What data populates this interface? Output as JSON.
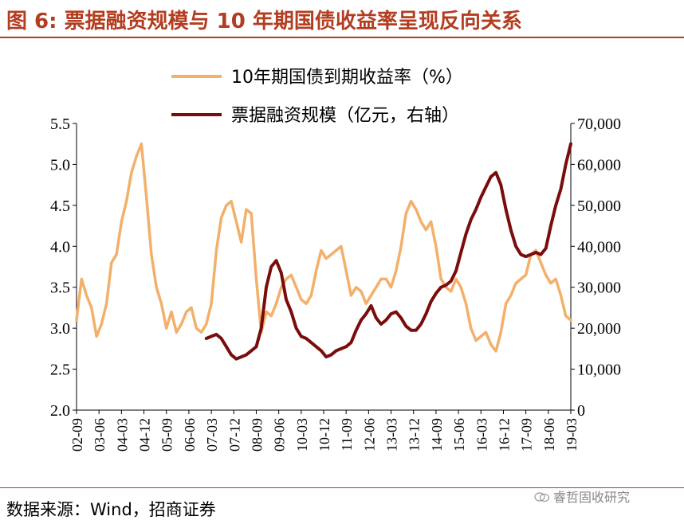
{
  "title": "图 6: 票据融资规模与 10 年期国债收益率呈现反向关系",
  "source": "数据来源：Wind，招商证券",
  "watermark": "睿哲固收研究",
  "colors": {
    "title": "#b33d20",
    "bond_yield": "#f2b06b",
    "bill_financing": "#7a0c0c",
    "axis": "#000000"
  },
  "chart_data": {
    "type": "line",
    "x_tick_labels": [
      "02-09",
      "03-06",
      "04-03",
      "04-12",
      "05-09",
      "06-06",
      "07-03",
      "07-12",
      "08-09",
      "09-06",
      "10-03",
      "10-12",
      "11-09",
      "12-06",
      "13-03",
      "13-12",
      "14-09",
      "15-06",
      "16-03",
      "16-12",
      "17-09",
      "18-06",
      "19-03"
    ],
    "x_range": [
      "2002-09",
      "2019-03"
    ],
    "left_axis": {
      "label": "10年期国债到期收益率（%）",
      "ticks": [
        "2.0",
        "2.5",
        "3.0",
        "3.5",
        "4.0",
        "4.5",
        "5.0",
        "5.5"
      ],
      "ylim": [
        2.0,
        5.5
      ]
    },
    "right_axis": {
      "label": "票据融资规模（亿元，右轴）",
      "ticks": [
        "0",
        "10,000",
        "20,000",
        "30,000",
        "40,000",
        "50,000",
        "60,000",
        "70,000"
      ],
      "ylim": [
        0,
        70000
      ]
    },
    "legend": {
      "position": "top-center"
    },
    "series": [
      {
        "name": "10年期国债到期收益率（%）",
        "axis": "left",
        "color": "#f2b06b",
        "points": [
          [
            "2002-09",
            3.1
          ],
          [
            "2002-11",
            3.6
          ],
          [
            "2003-01",
            3.4
          ],
          [
            "2003-03",
            3.25
          ],
          [
            "2003-05",
            2.9
          ],
          [
            "2003-07",
            3.05
          ],
          [
            "2003-09",
            3.3
          ],
          [
            "2003-11",
            3.8
          ],
          [
            "2004-01",
            3.9
          ],
          [
            "2004-03",
            4.3
          ],
          [
            "2004-05",
            4.55
          ],
          [
            "2004-07",
            4.9
          ],
          [
            "2004-09",
            5.1
          ],
          [
            "2004-11",
            5.25
          ],
          [
            "2005-01",
            4.6
          ],
          [
            "2005-03",
            3.9
          ],
          [
            "2005-05",
            3.5
          ],
          [
            "2005-07",
            3.3
          ],
          [
            "2005-09",
            3.0
          ],
          [
            "2005-11",
            3.2
          ],
          [
            "2006-01",
            2.95
          ],
          [
            "2006-03",
            3.05
          ],
          [
            "2006-05",
            3.2
          ],
          [
            "2006-07",
            3.25
          ],
          [
            "2006-09",
            3.0
          ],
          [
            "2006-11",
            2.95
          ],
          [
            "2007-01",
            3.05
          ],
          [
            "2007-03",
            3.3
          ],
          [
            "2007-05",
            3.95
          ],
          [
            "2007-07",
            4.35
          ],
          [
            "2007-09",
            4.5
          ],
          [
            "2007-11",
            4.55
          ],
          [
            "2008-01",
            4.3
          ],
          [
            "2008-03",
            4.05
          ],
          [
            "2008-05",
            4.45
          ],
          [
            "2008-07",
            4.4
          ],
          [
            "2008-09",
            3.6
          ],
          [
            "2008-11",
            2.95
          ],
          [
            "2009-01",
            3.2
          ],
          [
            "2009-03",
            3.15
          ],
          [
            "2009-05",
            3.3
          ],
          [
            "2009-07",
            3.5
          ],
          [
            "2009-09",
            3.6
          ],
          [
            "2009-11",
            3.65
          ],
          [
            "2010-01",
            3.5
          ],
          [
            "2010-03",
            3.35
          ],
          [
            "2010-05",
            3.3
          ],
          [
            "2010-07",
            3.4
          ],
          [
            "2010-09",
            3.7
          ],
          [
            "2010-11",
            3.95
          ],
          [
            "2011-01",
            3.85
          ],
          [
            "2011-03",
            3.9
          ],
          [
            "2011-05",
            3.95
          ],
          [
            "2011-07",
            4.0
          ],
          [
            "2011-09",
            3.7
          ],
          [
            "2011-11",
            3.4
          ],
          [
            "2012-01",
            3.5
          ],
          [
            "2012-03",
            3.45
          ],
          [
            "2012-05",
            3.3
          ],
          [
            "2012-07",
            3.4
          ],
          [
            "2012-09",
            3.5
          ],
          [
            "2012-11",
            3.6
          ],
          [
            "2013-01",
            3.6
          ],
          [
            "2013-03",
            3.5
          ],
          [
            "2013-05",
            3.7
          ],
          [
            "2013-07",
            4.0
          ],
          [
            "2013-09",
            4.4
          ],
          [
            "2013-11",
            4.55
          ],
          [
            "2014-01",
            4.45
          ],
          [
            "2014-03",
            4.3
          ],
          [
            "2014-05",
            4.2
          ],
          [
            "2014-07",
            4.3
          ],
          [
            "2014-09",
            4.0
          ],
          [
            "2014-11",
            3.6
          ],
          [
            "2015-01",
            3.5
          ],
          [
            "2015-03",
            3.45
          ],
          [
            "2015-05",
            3.6
          ],
          [
            "2015-07",
            3.5
          ],
          [
            "2015-09",
            3.3
          ],
          [
            "2015-11",
            3.0
          ],
          [
            "2016-01",
            2.85
          ],
          [
            "2016-03",
            2.9
          ],
          [
            "2016-05",
            2.95
          ],
          [
            "2016-07",
            2.8
          ],
          [
            "2016-09",
            2.72
          ],
          [
            "2016-11",
            2.95
          ],
          [
            "2017-01",
            3.3
          ],
          [
            "2017-03",
            3.4
          ],
          [
            "2017-05",
            3.55
          ],
          [
            "2017-07",
            3.6
          ],
          [
            "2017-09",
            3.65
          ],
          [
            "2017-11",
            3.9
          ],
          [
            "2018-01",
            3.95
          ],
          [
            "2018-03",
            3.8
          ],
          [
            "2018-05",
            3.65
          ],
          [
            "2018-07",
            3.55
          ],
          [
            "2018-09",
            3.6
          ],
          [
            "2018-11",
            3.4
          ],
          [
            "2019-01",
            3.15
          ],
          [
            "2019-03",
            3.1
          ]
        ]
      },
      {
        "name": "票据融资规模（亿元，右轴）",
        "axis": "right",
        "color": "#7a0c0c",
        "points": [
          [
            "2007-01",
            17500
          ],
          [
            "2007-03",
            18000
          ],
          [
            "2007-05",
            18500
          ],
          [
            "2007-07",
            17500
          ],
          [
            "2007-09",
            15500
          ],
          [
            "2007-11",
            13500
          ],
          [
            "2008-01",
            12500
          ],
          [
            "2008-03",
            13000
          ],
          [
            "2008-05",
            13500
          ],
          [
            "2008-07",
            14500
          ],
          [
            "2008-09",
            15500
          ],
          [
            "2008-11",
            20000
          ],
          [
            "2009-01",
            30000
          ],
          [
            "2009-03",
            35000
          ],
          [
            "2009-05",
            36500
          ],
          [
            "2009-07",
            33500
          ],
          [
            "2009-09",
            27000
          ],
          [
            "2009-11",
            24000
          ],
          [
            "2010-01",
            20000
          ],
          [
            "2010-03",
            18000
          ],
          [
            "2010-05",
            17500
          ],
          [
            "2010-07",
            16500
          ],
          [
            "2010-09",
            15500
          ],
          [
            "2010-11",
            14500
          ],
          [
            "2011-01",
            13000
          ],
          [
            "2011-03",
            13500
          ],
          [
            "2011-05",
            14500
          ],
          [
            "2011-07",
            15000
          ],
          [
            "2011-09",
            15500
          ],
          [
            "2011-11",
            16500
          ],
          [
            "2012-01",
            19500
          ],
          [
            "2012-03",
            22000
          ],
          [
            "2012-05",
            23500
          ],
          [
            "2012-07",
            25500
          ],
          [
            "2012-09",
            22500
          ],
          [
            "2012-11",
            21000
          ],
          [
            "2013-01",
            22000
          ],
          [
            "2013-03",
            23500
          ],
          [
            "2013-05",
            24000
          ],
          [
            "2013-07",
            22500
          ],
          [
            "2013-09",
            20500
          ],
          [
            "2013-11",
            19500
          ],
          [
            "2014-01",
            19500
          ],
          [
            "2014-03",
            21000
          ],
          [
            "2014-05",
            23500
          ],
          [
            "2014-07",
            26500
          ],
          [
            "2014-09",
            28500
          ],
          [
            "2014-11",
            30000
          ],
          [
            "2015-01",
            30500
          ],
          [
            "2015-03",
            31500
          ],
          [
            "2015-05",
            34000
          ],
          [
            "2015-07",
            38500
          ],
          [
            "2015-09",
            43000
          ],
          [
            "2015-11",
            46500
          ],
          [
            "2016-01",
            49000
          ],
          [
            "2016-03",
            52000
          ],
          [
            "2016-05",
            54500
          ],
          [
            "2016-07",
            57000
          ],
          [
            "2016-09",
            58000
          ],
          [
            "2016-11",
            55000
          ],
          [
            "2017-01",
            49000
          ],
          [
            "2017-03",
            44000
          ],
          [
            "2017-05",
            40000
          ],
          [
            "2017-07",
            38000
          ],
          [
            "2017-09",
            37500
          ],
          [
            "2017-11",
            38000
          ],
          [
            "2018-01",
            38500
          ],
          [
            "2018-03",
            38000
          ],
          [
            "2018-05",
            39500
          ],
          [
            "2018-07",
            45000
          ],
          [
            "2018-09",
            50000
          ],
          [
            "2018-11",
            54000
          ],
          [
            "2019-01",
            60000
          ],
          [
            "2019-03",
            65000
          ]
        ]
      }
    ]
  }
}
